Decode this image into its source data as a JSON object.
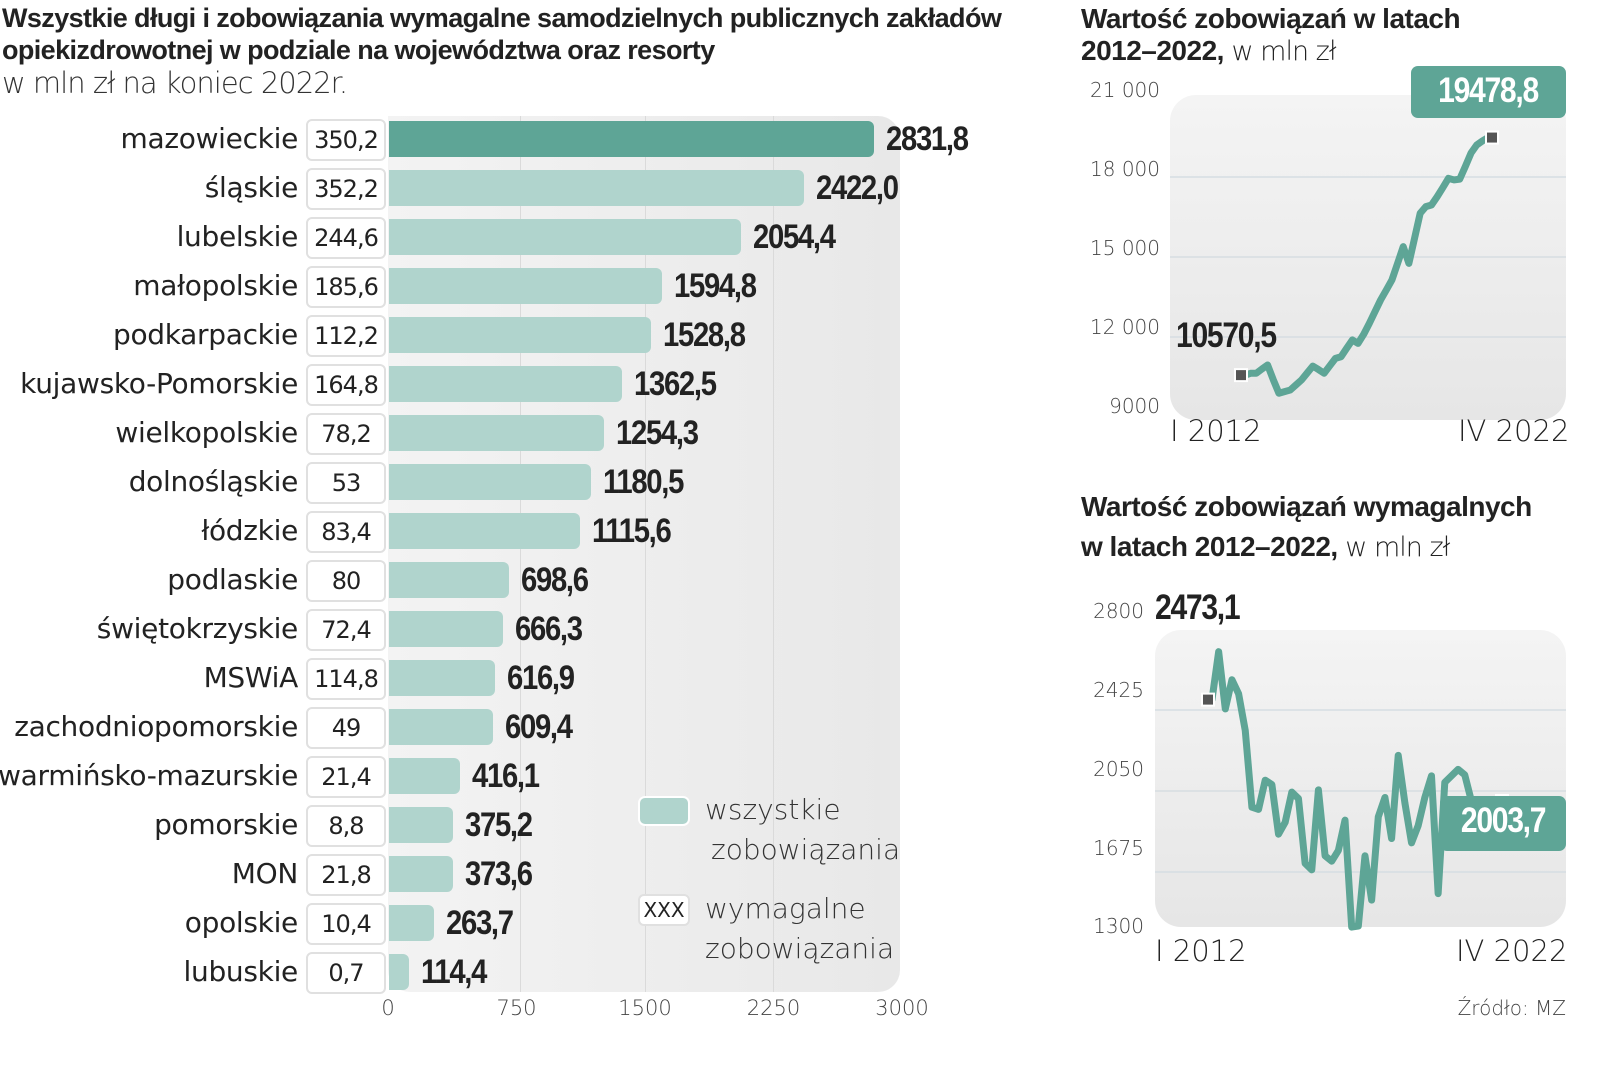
{
  "main_chart": {
    "title": "Wszystkie długi i zobowiązania wymagalne samodzielnych publicznych zakładów opiekizdrowotnej w podziale na województwa oraz resorty",
    "subtitle": "w mln zł na koniec 2022r.",
    "legend": {
      "all_line1": "wszystkie",
      "all_line2": "zobowiązania",
      "due_sample": "XXX",
      "due_line1": "wymagalne",
      "due_line2": "zobowiązania"
    },
    "colors": {
      "highlight": "#5ea596",
      "bar": "#b0d4cd"
    }
  },
  "right_top": {
    "title_bold_1": "Wartość zobowiązań w latach",
    "title_bold_2": "2012–2022,",
    "title_thin": " w mln zł",
    "start_label": "10570,5",
    "end_label": "19478,8",
    "x_start": "I 2012",
    "x_end": "IV 2022"
  },
  "right_bottom": {
    "title_bold_1": "Wartość zobowiązań wymagalnych",
    "title_bold_2": "w latach 2012–2022,",
    "title_thin": " w mln zł",
    "start_label": "2473,1",
    "end_label": "2003,7",
    "x_start": "I 2012",
    "x_end": "IV 2022"
  },
  "source": "Źródło: MZ",
  "chart_data": [
    {
      "type": "bar",
      "orientation": "horizontal",
      "title": "Wszystkie długi i zobowiązania wymagalne samodzielnych publicznych zakładów opiekizdrowotnej w podziale na województwa oraz resorty",
      "subtitle": "w mln zł na koniec 2022r.",
      "xlabel": "",
      "ylabel": "",
      "xlim": [
        0,
        3000
      ],
      "x_ticks": [
        "0",
        "750",
        "1500",
        "2250",
        "3000"
      ],
      "grid": true,
      "legend_position": "bottom-right",
      "categories": [
        "mazowieckie",
        "śląskie",
        "lubelskie",
        "małopolskie",
        "podkarpackie",
        "kujawsko-Pomorskie",
        "wielkopolskie",
        "dolnośląskie",
        "łódzkie",
        "podlaskie",
        "świętokrzyskie",
        "MSWiA",
        "zachodniopomorskie",
        "warmińsko-mazurskie",
        "pomorskie",
        "MON",
        "opolskie",
        "lubuskie"
      ],
      "series": [
        {
          "name": "wszystkie zobowiązania",
          "values": [
            2831.8,
            2422.0,
            2054.4,
            1594.8,
            1528.8,
            1362.5,
            1254.3,
            1180.5,
            1115.6,
            698.6,
            666.3,
            616.9,
            609.4,
            416.1,
            375.2,
            373.6,
            263.7,
            114.4
          ],
          "labels": [
            "2831,8",
            "2422,0",
            "2054,4",
            "1594,8",
            "1528,8",
            "1362,5",
            "1254,3",
            "1180,5",
            "1115,6",
            "698,6",
            "666,3",
            "616,9",
            "609,4",
            "416,1",
            "375,2",
            "373,6",
            "263,7",
            "114,4"
          ]
        },
        {
          "name": "wymagalne zobowiązania",
          "values": [
            350.2,
            352.2,
            244.6,
            185.6,
            112.2,
            164.8,
            78.2,
            53,
            83.4,
            80,
            72.4,
            114.8,
            49,
            21.4,
            8.8,
            21.8,
            10.4,
            0.7
          ],
          "labels": [
            "350,2",
            "352,2",
            "244,6",
            "185,6",
            "112,2",
            "164,8",
            "78,2",
            "53",
            "83,4",
            "80",
            "72,4",
            "114,8",
            "49",
            "21,4",
            "8,8",
            "21,8",
            "10,4",
            "0,7"
          ]
        }
      ]
    },
    {
      "type": "line",
      "title": "Wartość zobowiązań w latach 2012–2022, w mln zł",
      "x_start": "I 2012",
      "x_end": "IV 2022",
      "ylim": [
        9000,
        21000
      ],
      "y_ticks": [
        "21 000",
        "18 000",
        "15 000",
        "12 000",
        "9000"
      ],
      "grid": true,
      "series": [
        {
          "name": "zobowiązania",
          "values": [
            10570.5,
            10640,
            10640,
            10800,
            10950,
            10400,
            9890,
            9950,
            10010,
            10200,
            10390,
            10650,
            10910,
            10780,
            10640,
            10920,
            11200,
            11260,
            11580,
            11890,
            11760,
            12100,
            12510,
            12950,
            13390,
            13760,
            14140,
            14760,
            15390,
            14760,
            15700,
            16640,
            16890,
            16950,
            17260,
            17600,
            17950,
            17890,
            17920,
            18400,
            18900,
            19200,
            19350,
            19478.8
          ]
        }
      ],
      "annotations": [
        {
          "label": "10570,5",
          "at": "start"
        },
        {
          "label": "19478,8",
          "at": "end"
        }
      ]
    },
    {
      "type": "line",
      "title": "Wartość zobowiązań wymagalnych w latach 2012–2022, w mln zł",
      "x_start": "I 2012",
      "x_end": "IV 2022",
      "ylim": [
        1300,
        2800
      ],
      "y_ticks": [
        "2800",
        "2425",
        "2050",
        "1675",
        "1300"
      ],
      "grid": true,
      "series": [
        {
          "name": "zobowiązania wymagalne",
          "values": [
            2473.1,
            2695,
            2430,
            2565,
            2500,
            2330,
            1975,
            1965,
            2100,
            2080,
            1850,
            1905,
            2045,
            2015,
            1715,
            1685,
            2055,
            1750,
            1725,
            1775,
            1915,
            1420,
            1425,
            1750,
            1545,
            1930,
            2020,
            1830,
            2215,
            1995,
            1810,
            1890,
            2020,
            2120,
            1575,
            2090,
            2120,
            2150,
            2125,
            2003.7,
            2003.7,
            2003.7,
            2003.7,
            2003.7
          ]
        }
      ],
      "annotations": [
        {
          "label": "2473,1",
          "at": "start"
        },
        {
          "label": "2003,7",
          "at": "end"
        }
      ]
    }
  ]
}
